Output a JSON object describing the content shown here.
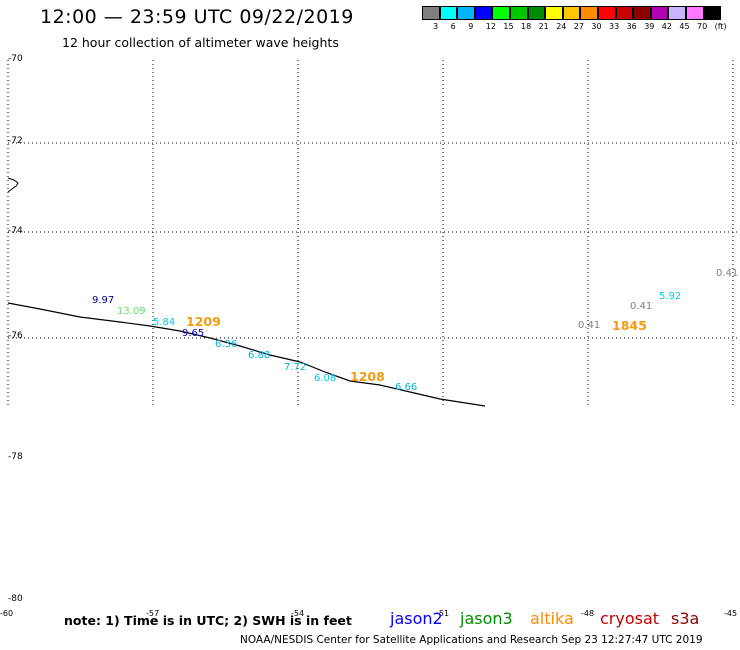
{
  "header": {
    "title": "12:00 — 23:59 UTC 09/22/2019",
    "subtitle": "12 hour collection of altimeter wave heights"
  },
  "legend_scale": {
    "colors": [
      "#808080",
      "#00ffff",
      "#00b4ff",
      "#0000ff",
      "#00ff00",
      "#00c800",
      "#008c00",
      "#ffff00",
      "#ffc800",
      "#ff8c00",
      "#ff0000",
      "#c80000",
      "#8c0000",
      "#b400b4",
      "#c8b4ff",
      "#ff78ff",
      "#000000"
    ],
    "labels": [
      "3",
      "6",
      "9",
      "12",
      "15",
      "18",
      "21",
      "24",
      "27",
      "30",
      "33",
      "36",
      "39",
      "42",
      "45",
      "70",
      "(ft)"
    ]
  },
  "axes": {
    "lat_labels": [
      "-70",
      "-72",
      "-74",
      "-76",
      "-78",
      "-80"
    ],
    "lon_labels": [
      "-60",
      "-57",
      "-54",
      "-51",
      "-48",
      "-45"
    ]
  },
  "observations": [
    {
      "label": "9.97",
      "color": "#00008b"
    },
    {
      "label": "13.09",
      "color": "#66dd66"
    },
    {
      "label": "5.84",
      "color": "#00c8e6"
    },
    {
      "label": "9.65",
      "color": "#0000c8"
    },
    {
      "label": "6.36",
      "color": "#00b4e6"
    },
    {
      "label": "6.88",
      "color": "#00b4e6"
    },
    {
      "label": "7.72",
      "color": "#00b4e6"
    },
    {
      "label": "6.08",
      "color": "#00c8e6"
    },
    {
      "label": "6.66",
      "color": "#00b4e6"
    },
    {
      "label": "0.41",
      "color": "#808080"
    },
    {
      "label": "0.41",
      "color": "#808080"
    },
    {
      "label": "5.92",
      "color": "#00d2e6"
    },
    {
      "label": "0.41",
      "color": "#808080"
    }
  ],
  "time_labels": [
    "1209",
    "1208",
    "1845"
  ],
  "note": "note: 1) Time is in UTC; 2) SWH is in feet",
  "satellites": [
    {
      "name": "jason2",
      "color": "#0000ff"
    },
    {
      "name": "jason3",
      "color": "#008c00"
    },
    {
      "name": "altika",
      "color": "#ff8c00"
    },
    {
      "name": "cryosat",
      "color": "#c80000"
    },
    {
      "name": "s3a",
      "color": "#8c0000"
    }
  ],
  "footer": "NOAA/NESDIS Center for Satellite Applications and Research    Sep 23 12:27:47 UTC 2019"
}
